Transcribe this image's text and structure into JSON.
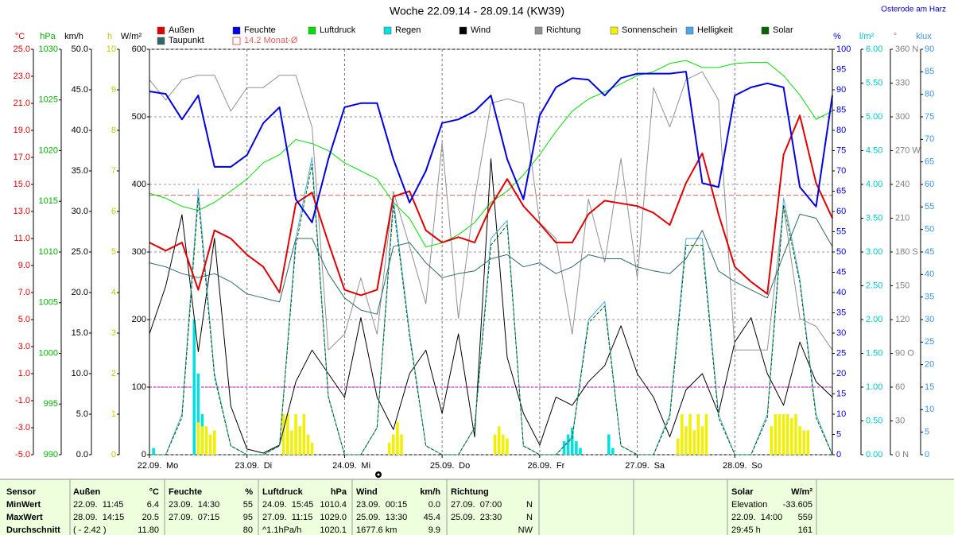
{
  "chart_data": {
    "type": "line",
    "title": "Woche 22.09.14 - 28.09.14 (KW39)",
    "location": "Osterode am Harz",
    "xlim": [
      0,
      168
    ],
    "xticks": [
      {
        "value": 0,
        "label": "22.09."
      },
      {
        "value": 24,
        "label": "23.09."
      },
      {
        "value": 48,
        "label": "24.09."
      },
      {
        "value": 72,
        "label": "25.09."
      },
      {
        "value": 96,
        "label": "26.09."
      },
      {
        "value": 120,
        "label": "27.09."
      },
      {
        "value": 144,
        "label": "28.09."
      }
    ],
    "weekdays": [
      "Mo",
      "Di",
      "Mi",
      "Do",
      "Fr",
      "Sa",
      "So"
    ],
    "grid": true,
    "grid_axis": "W/m²",
    "axes": [
      {
        "unit": "°C",
        "color": "#e00000",
        "ylim": [
          -5,
          25
        ],
        "yticks": [
          {
            "value": 25,
            "label": "25.0"
          },
          {
            "value": 23,
            "label": "23.0"
          },
          {
            "value": 21,
            "label": "21.0"
          },
          {
            "value": 19,
            "label": "19.0"
          },
          {
            "value": 17,
            "label": "17.0"
          },
          {
            "value": 15,
            "label": "15.0"
          },
          {
            "value": 13,
            "label": "13.0"
          },
          {
            "value": 11,
            "label": "11.0"
          },
          {
            "value": 9,
            "label": "9.0"
          },
          {
            "value": 7,
            "label": "7.0"
          },
          {
            "value": 5,
            "label": "5.0"
          },
          {
            "value": 3,
            "label": "3.0"
          },
          {
            "value": 1,
            "label": "1.0"
          },
          {
            "value": -1,
            "label": "-1.0"
          },
          {
            "value": -3,
            "label": "-3.0"
          },
          {
            "value": -5,
            "label": "-5.0"
          }
        ]
      },
      {
        "unit": "hPa",
        "color": "#00b400",
        "ylim": [
          990,
          1030
        ],
        "yticks": [
          1030,
          1025,
          1020,
          1015,
          1010,
          1005,
          1000,
          995,
          990
        ]
      },
      {
        "unit": "km/h",
        "color": "#000000",
        "ylim": [
          0,
          50
        ],
        "yticks": [
          {
            "value": 50,
            "label": "50.0"
          },
          {
            "value": 45,
            "label": "45.0"
          },
          {
            "value": 40,
            "label": "40.0"
          },
          {
            "value": 35,
            "label": "35.0"
          },
          {
            "value": 30,
            "label": "30.0"
          },
          {
            "value": 25,
            "label": "25.0"
          },
          {
            "value": 20,
            "label": "20.0"
          },
          {
            "value": 15,
            "label": "15.0"
          },
          {
            "value": 10,
            "label": "10.0"
          },
          {
            "value": 5,
            "label": "5.0"
          },
          {
            "value": 0,
            "label": "0.0"
          }
        ]
      },
      {
        "unit": "h",
        "color": "#c8c800",
        "ylim": [
          0,
          10
        ],
        "yticks": [
          10,
          9,
          8,
          7,
          6,
          5,
          4,
          3,
          2,
          1,
          0
        ]
      },
      {
        "unit": "W/m²",
        "color": "#000000",
        "ylim": [
          0,
          600
        ],
        "yticks": [
          600,
          500,
          400,
          300,
          200,
          100,
          0
        ]
      },
      {
        "unit": "%",
        "color": "#0000e0",
        "ylim": [
          0,
          100
        ],
        "yticks": [
          100,
          95,
          90,
          85,
          80,
          75,
          70,
          65,
          60,
          55,
          50,
          45,
          40,
          35,
          30,
          25,
          20,
          15,
          10,
          5,
          0
        ]
      },
      {
        "unit": "l/m²",
        "color": "#00c8c8",
        "ylim": [
          0,
          6
        ],
        "yticks": [
          {
            "value": 6,
            "label": "6.00"
          },
          {
            "value": 5.5,
            "label": "5.50"
          },
          {
            "value": 5,
            "label": "5.00"
          },
          {
            "value": 4.5,
            "label": "4.50"
          },
          {
            "value": 4,
            "label": "4.00"
          },
          {
            "value": 3.5,
            "label": "3.50"
          },
          {
            "value": 3,
            "label": "3.00"
          },
          {
            "value": 2.5,
            "label": "2.50"
          },
          {
            "value": 2,
            "label": "2.00"
          },
          {
            "value": 1.5,
            "label": "1.50"
          },
          {
            "value": 1,
            "label": "1.00"
          },
          {
            "value": 0.5,
            "label": "0.50"
          },
          {
            "value": 0,
            "label": "0.00"
          }
        ]
      },
      {
        "unit": "°",
        "color": "#808080",
        "ylim": [
          0,
          360
        ],
        "yticks": [
          {
            "value": 360,
            "label": "360 N"
          },
          330,
          300,
          {
            "value": 270,
            "label": "270 W"
          },
          240,
          210,
          {
            "value": 180,
            "label": "180 S"
          },
          150,
          120,
          {
            "value": 90,
            "label": "90 O"
          },
          60,
          30,
          {
            "value": 0,
            "label": "0 N"
          }
        ]
      },
      {
        "unit": "klux",
        "color": "#3c96e6",
        "ylim": [
          0,
          90
        ],
        "yticks": [
          90,
          85,
          80,
          75,
          70,
          65,
          60,
          55,
          50,
          45,
          40,
          35,
          30,
          25,
          20,
          15,
          10,
          5,
          0
        ]
      }
    ],
    "x": [
      0,
      4,
      8,
      12,
      16,
      20,
      24,
      28,
      32,
      36,
      40,
      44,
      48,
      52,
      56,
      60,
      64,
      68,
      72,
      76,
      80,
      84,
      88,
      92,
      96,
      100,
      104,
      108,
      112,
      116,
      120,
      124,
      128,
      132,
      136,
      140,
      144,
      148,
      152,
      156,
      160,
      164,
      168
    ],
    "series": [
      {
        "name": "Außen",
        "color": "#e00000",
        "axis": "°C",
        "width": 2,
        "values": [
          10.7,
          10.1,
          10.7,
          7.2,
          11.6,
          11.0,
          9.8,
          8.9,
          7.0,
          13.6,
          14.4,
          10.7,
          7.2,
          6.8,
          7.2,
          14.1,
          14.5,
          11.6,
          10.7,
          11.1,
          10.7,
          13.4,
          15.4,
          13.4,
          12.1,
          10.7,
          10.7,
          12.8,
          13.8,
          13.6,
          13.4,
          12.9,
          12.0,
          15.1,
          17.3,
          12.8,
          8.9,
          7.8,
          6.9,
          17.2,
          20.1,
          15.1,
          12.5
        ]
      },
      {
        "name": "Feuchte",
        "color": "#0000e0",
        "axis": "%",
        "width": 2,
        "values": [
          89.6,
          89,
          82.7,
          88.6,
          71,
          71,
          73.9,
          81.8,
          85.7,
          63,
          57.3,
          72.9,
          85.7,
          86.7,
          86.7,
          72.9,
          62.2,
          70,
          81.8,
          82.7,
          84.7,
          88.6,
          72.9,
          63,
          83.7,
          90.6,
          92.9,
          92.5,
          88.6,
          92.9,
          94,
          94,
          94,
          94.5,
          67,
          66,
          88.6,
          90.6,
          91.6,
          90.6,
          66,
          61.2,
          88.6
        ]
      },
      {
        "name": "Luftdruck",
        "color": "#00e000",
        "axis": "hPa",
        "width": 1,
        "values": [
          1015.8,
          1015.3,
          1014.5,
          1014.1,
          1014.9,
          1016.0,
          1017.2,
          1018.8,
          1019.6,
          1021.1,
          1020.7,
          1020.0,
          1018.8,
          1018.0,
          1017.2,
          1014.9,
          1013.3,
          1010.5,
          1010.9,
          1011.7,
          1012.9,
          1014.9,
          1016.0,
          1017.6,
          1019.6,
          1021.9,
          1023.9,
          1025.1,
          1025.8,
          1026.6,
          1027.4,
          1027.8,
          1028.6,
          1028.9,
          1028.2,
          1028.2,
          1028.6,
          1028.7,
          1028.7,
          1027.4,
          1025.5,
          1023.1,
          1023.9
        ]
      },
      {
        "name": "Regen",
        "color": "#00e0e0",
        "axis": "l/m²",
        "style": "bars",
        "x": [
          1,
          11,
          12,
          13,
          102,
          103,
          104,
          105,
          106,
          113,
          114
        ],
        "values": [
          0.1,
          2.0,
          1.2,
          0.6,
          0.2,
          0.3,
          0.4,
          0.2,
          0.1,
          0.3,
          0.1
        ]
      },
      {
        "name": "Wind",
        "color": "#000000",
        "axis": "km/h",
        "width": 1,
        "values": [
          14.9,
          20.8,
          29.6,
          12.7,
          26.7,
          6.0,
          0.7,
          0.2,
          1.2,
          9.0,
          12.9,
          10.0,
          7.1,
          16.9,
          7.1,
          3.1,
          10.0,
          12.9,
          5.1,
          14.9,
          2.2,
          36.5,
          12.0,
          5.1,
          1.2,
          7.1,
          6.1,
          9.0,
          11.0,
          15.9,
          10.0,
          7.1,
          2.2,
          8.0,
          10.0,
          5.1,
          13.9,
          16.9,
          10.0,
          6.1,
          13.9,
          9.0,
          7.1
        ]
      },
      {
        "name": "Richtung",
        "color": "#909090",
        "axis": "°",
        "width": 1,
        "values": [
          333,
          315,
          333,
          337,
          337,
          305,
          326,
          326,
          337,
          337,
          291,
          93,
          107,
          157,
          107,
          234,
          185,
          134,
          277,
          121,
          227,
          312,
          316,
          312,
          206,
          192,
          107,
          227,
          171,
          263,
          157,
          326,
          291,
          333,
          340,
          315,
          93,
          93,
          93,
          220,
          121,
          114,
          93
        ]
      },
      {
        "name": "Sonnenschein",
        "color": "#f0f000",
        "axis": "h",
        "style": "bars",
        "x": [
          12,
          13,
          14,
          15,
          16,
          33,
          34,
          35,
          36,
          37,
          38,
          39,
          40,
          59,
          60,
          61,
          62,
          85,
          86,
          87,
          88,
          130,
          131,
          132,
          133,
          134,
          135,
          136,
          137,
          153,
          154,
          155,
          156,
          157,
          158,
          159,
          160,
          161,
          162
        ],
        "values": [
          0.8,
          0.7,
          0.7,
          0.5,
          0.6,
          1.0,
          1.0,
          0.6,
          1.0,
          0.7,
          1.0,
          0.5,
          0.3,
          0.3,
          0.5,
          0.8,
          0.5,
          0.5,
          0.7,
          0.5,
          0.4,
          0.4,
          1.0,
          0.7,
          1.0,
          0.6,
          1.0,
          0.7,
          1.0,
          0.7,
          1.0,
          1.0,
          1.0,
          1.0,
          0.9,
          1.0,
          0.7,
          0.6,
          0.6
        ]
      },
      {
        "name": "Helligkeit",
        "color": "#4aa8e8",
        "axis": "klux",
        "width": 1,
        "values": [
          0,
          0,
          9,
          59,
          18,
          2,
          0,
          0,
          2,
          48,
          66,
          13,
          0,
          0,
          6,
          57,
          27,
          2,
          0,
          0,
          6,
          48,
          52,
          2,
          0,
          0,
          4,
          30,
          34,
          2,
          0,
          0,
          9,
          48,
          48,
          9,
          0,
          0,
          9,
          57,
          39,
          9,
          0
        ]
      },
      {
        "name": "Solar",
        "color": "#006400",
        "axis": "W/m²",
        "width": 1,
        "style": "dashed",
        "values": [
          0,
          0,
          55,
          380,
          115,
          13,
          0,
          0,
          13,
          310,
          430,
          85,
          0,
          0,
          40,
          370,
          175,
          13,
          0,
          0,
          40,
          310,
          340,
          13,
          0,
          0,
          25,
          195,
          220,
          13,
          0,
          0,
          55,
          310,
          310,
          55,
          0,
          0,
          55,
          370,
          255,
          55,
          0
        ]
      },
      {
        "name": "Taupunkt",
        "color": "#306868",
        "axis": "°C",
        "width": 1,
        "values": [
          9.2,
          8.9,
          8.4,
          8.1,
          8.4,
          7.8,
          6.9,
          6.6,
          6.3,
          11.0,
          11.0,
          8.4,
          6.6,
          5.7,
          5.4,
          10.4,
          10.7,
          9.2,
          8.1,
          8.4,
          8.6,
          9.5,
          9.8,
          8.9,
          9.2,
          8.4,
          8.9,
          9.8,
          9.5,
          9.5,
          8.9,
          8.6,
          8.4,
          9.5,
          11.6,
          8.6,
          7.8,
          7.2,
          6.6,
          9.8,
          12.8,
          12.5,
          10.4
        ]
      }
    ],
    "monthly_average": {
      "label": "14.2 Monat-Ø",
      "value": 14.2,
      "axis": "°C",
      "color": "#e06060"
    },
    "reference_lines": [
      {
        "axis": "W/m²",
        "value": 100,
        "color": "#c000c0"
      }
    ]
  },
  "summary": {
    "sensor_header": "Sensor",
    "columns": [
      [
        "Außen",
        "°C"
      ],
      [
        "Feuchte",
        "%"
      ],
      [
        "Luftdruck",
        "hPa"
      ],
      [
        "Wind",
        "km/h"
      ],
      [
        "Richtung",
        null
      ],
      [
        "Solar",
        "W/m²"
      ]
    ],
    "rows": [
      {
        "label": "MinWert",
        "cells": [
          [
            "22.09.  11:45",
            "6.4"
          ],
          [
            "23.09.  14:30",
            "55"
          ],
          [
            "24.09.  15:45",
            "1010.4"
          ],
          [
            "23.09.  00:15",
            "0.0"
          ],
          [
            "27.09.  07:00",
            "N"
          ],
          [
            "Elevation",
            "-33.605"
          ]
        ]
      },
      {
        "label": "MaxWert",
        "cells": [
          [
            "28.09.  14:15",
            "20.5"
          ],
          [
            "27.09.  07:15",
            "95"
          ],
          [
            "27.09.  11:15",
            "1029.0"
          ],
          [
            "25.09.  13:30",
            "45.4"
          ],
          [
            "25.09.  23:30",
            "N"
          ],
          [
            "22.09.  14:00",
            "559"
          ]
        ]
      },
      {
        "label": "Durchschnitt",
        "cells": [
          [
            "( - 2.42 )",
            "11.80"
          ],
          [
            null,
            "80"
          ],
          [
            "^1.1hPa/h",
            "1020.1"
          ],
          [
            "1677.6 km",
            "9.9"
          ],
          [
            null,
            "NW"
          ],
          [
            "29:45 h",
            "161"
          ]
        ]
      }
    ]
  }
}
